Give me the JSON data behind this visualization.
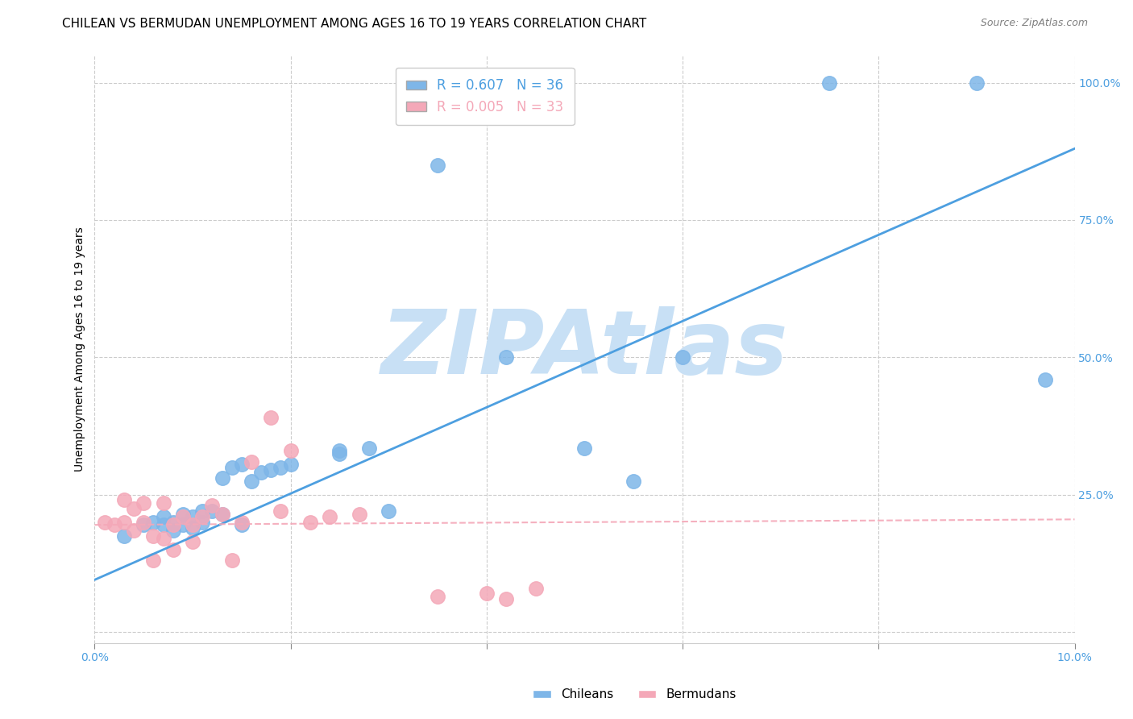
{
  "title": "CHILEAN VS BERMUDAN UNEMPLOYMENT AMONG AGES 16 TO 19 YEARS CORRELATION CHART",
  "source_text": "Source: ZipAtlas.com",
  "ylabel": "Unemployment Among Ages 16 to 19 years",
  "xlim": [
    0.0,
    0.1
  ],
  "ylim": [
    -0.02,
    1.05
  ],
  "xticks": [
    0.0,
    0.02,
    0.04,
    0.06,
    0.08,
    0.1
  ],
  "xticklabels": [
    "0.0%",
    "",
    "",
    "",
    "",
    "10.0%"
  ],
  "yticks": [
    0.0,
    0.25,
    0.5,
    0.75,
    1.0
  ],
  "yticklabels": [
    "",
    "25.0%",
    "50.0%",
    "75.0%",
    "100.0%"
  ],
  "chilean_R": 0.607,
  "chilean_N": 36,
  "bermudan_R": 0.005,
  "bermudan_N": 33,
  "chilean_color": "#7EB6E8",
  "bermudan_color": "#F4A8B8",
  "regression_blue_color": "#4D9FE0",
  "watermark_color": "#C8E0F5",
  "watermark_text": "ZIPAtlas",
  "chilean_x": [
    0.003,
    0.005,
    0.006,
    0.007,
    0.007,
    0.008,
    0.008,
    0.009,
    0.009,
    0.01,
    0.01,
    0.011,
    0.011,
    0.012,
    0.013,
    0.013,
    0.014,
    0.015,
    0.015,
    0.016,
    0.017,
    0.018,
    0.019,
    0.02,
    0.025,
    0.025,
    0.028,
    0.03,
    0.035,
    0.042,
    0.05,
    0.055,
    0.06,
    0.075,
    0.09,
    0.097
  ],
  "chilean_y": [
    0.175,
    0.195,
    0.2,
    0.21,
    0.195,
    0.2,
    0.185,
    0.215,
    0.195,
    0.21,
    0.19,
    0.22,
    0.2,
    0.22,
    0.28,
    0.215,
    0.3,
    0.305,
    0.195,
    0.275,
    0.29,
    0.295,
    0.3,
    0.305,
    0.325,
    0.33,
    0.335,
    0.22,
    0.85,
    0.5,
    0.335,
    0.275,
    0.5,
    1.0,
    1.0,
    0.46
  ],
  "bermudan_x": [
    0.001,
    0.002,
    0.003,
    0.003,
    0.004,
    0.004,
    0.005,
    0.005,
    0.006,
    0.006,
    0.007,
    0.007,
    0.008,
    0.008,
    0.009,
    0.01,
    0.01,
    0.011,
    0.012,
    0.013,
    0.014,
    0.015,
    0.016,
    0.018,
    0.019,
    0.02,
    0.022,
    0.024,
    0.027,
    0.035,
    0.04,
    0.042,
    0.045
  ],
  "bermudan_y": [
    0.2,
    0.195,
    0.24,
    0.2,
    0.225,
    0.185,
    0.235,
    0.2,
    0.175,
    0.13,
    0.235,
    0.17,
    0.195,
    0.15,
    0.21,
    0.195,
    0.165,
    0.21,
    0.23,
    0.215,
    0.13,
    0.2,
    0.31,
    0.39,
    0.22,
    0.33,
    0.2,
    0.21,
    0.215,
    0.065,
    0.07,
    0.06,
    0.08
  ],
  "blue_line_x": [
    0.0,
    0.1
  ],
  "blue_line_y": [
    0.095,
    0.88
  ],
  "pink_line_x": [
    0.0,
    0.1
  ],
  "pink_line_y": [
    0.195,
    0.205
  ],
  "grid_color": "#CCCCCC",
  "background_color": "#FFFFFF",
  "title_fontsize": 11,
  "label_fontsize": 10,
  "tick_fontsize": 10,
  "tick_color": "#4D9FE0"
}
